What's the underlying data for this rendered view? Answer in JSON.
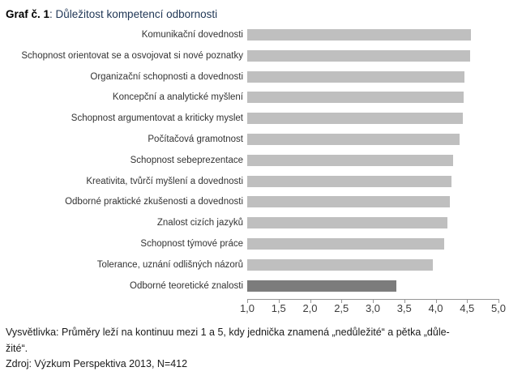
{
  "caption": {
    "label": "Graf č. 1",
    "title": ": Důležitost kompetencí odbornosti"
  },
  "chart_data": {
    "type": "bar",
    "orientation": "horizontal",
    "title": "Graf č. 1: Důležitost kompetencí odbornosti",
    "categories": [
      "Komunikační dovednosti",
      "Schopnost orientovat se a osvojovat si nové poznatky",
      "Organizační schopnosti a dovednosti",
      "Koncepční a analytické myšlení",
      "Schopnost argumentovat a kriticky myslet",
      "Počítačová gramotnost",
      "Schopnost sebeprezentace",
      "Kreativita, tvůrčí myšlení a dovednosti",
      "Odborné praktické zkušenosti a dovednosti",
      "Znalost cizích jazyků",
      "Schopnost týmové práce",
      "Tolerance, uznání odlišných názorů",
      "Odborné teoretické znalosti"
    ],
    "values": [
      4.56,
      4.55,
      4.46,
      4.44,
      4.43,
      4.38,
      4.28,
      4.25,
      4.22,
      4.19,
      4.13,
      3.95,
      3.37
    ],
    "xlim": [
      1.0,
      5.0
    ],
    "x_ticks": [
      "1,0",
      "1,5",
      "2,0",
      "2,5",
      "3,0",
      "3,5",
      "4,0",
      "4,5",
      "5,0"
    ],
    "x_tick_values": [
      1.0,
      1.5,
      2.0,
      2.5,
      3.0,
      3.5,
      4.0,
      4.5,
      5.0
    ],
    "grid": false,
    "legend": false,
    "bar_color": "#bfbfbf",
    "highlight_color": "#7c7c7c",
    "highlight_index": 12,
    "axis_color": "#969696"
  },
  "footnote": {
    "explanation_line1": "Vysvětlivka: Průměry leží na kontinuu mezi 1 a 5, kdy jednička znamená „nedůležité“ a pětka „důle-",
    "explanation_line2": "žité“.",
    "source": "Zdroj: Výzkum Perspektiva 2013, N=412"
  }
}
